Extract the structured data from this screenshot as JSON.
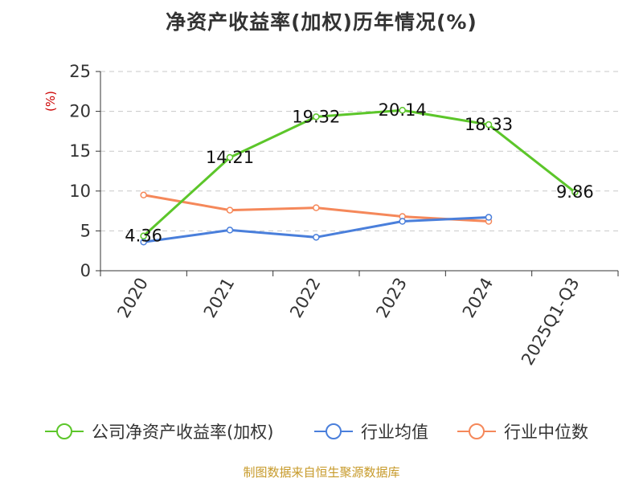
{
  "title": "净资产收益率(加权)历年情况(%)",
  "source": "制图数据来自恒生聚源数据库",
  "chart_data": {
    "type": "line",
    "title": "净资产收益率(加权)历年情况(%)",
    "ylabel": "(%)",
    "xlabel": "",
    "categories": [
      "2020",
      "2021",
      "2022",
      "2023",
      "2024",
      "2025Q1-Q3"
    ],
    "ylim": [
      0,
      25
    ],
    "yticks": [
      0,
      5,
      10,
      15,
      20,
      25
    ],
    "grid": "horizontal dashed",
    "legend_position": "bottom",
    "series": [
      {
        "name": "公司净资产收益率(加权)",
        "color": "#5cc62a",
        "values": [
          4.36,
          14.21,
          19.32,
          20.14,
          18.33,
          9.86
        ],
        "labels": [
          "4.36",
          "14.21",
          "19.32",
          "20.14",
          "18.33",
          "9.86"
        ],
        "show_labels": true
      },
      {
        "name": "行业均值",
        "color": "#4a7fdb",
        "values": [
          3.6,
          5.1,
          4.2,
          6.2,
          6.7,
          null
        ],
        "show_labels": false
      },
      {
        "name": "行业中位数",
        "color": "#f5885a",
        "values": [
          9.5,
          7.6,
          7.9,
          6.8,
          6.2,
          null
        ],
        "show_labels": false
      }
    ]
  }
}
